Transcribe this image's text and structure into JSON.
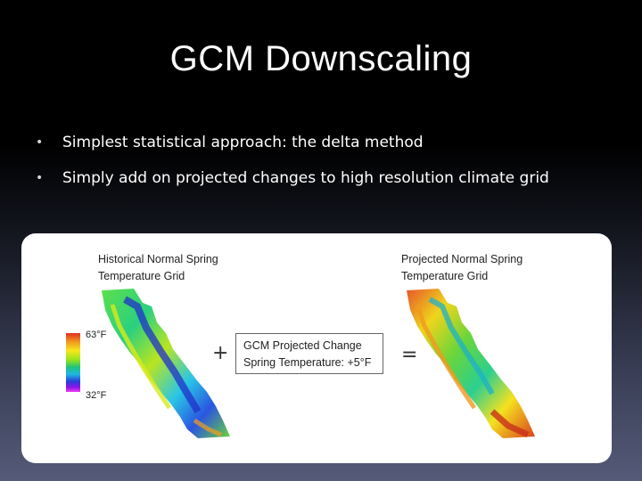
{
  "slide": {
    "title": "GCM Downscaling",
    "bullets": [
      "Simplest statistical approach: the delta method",
      "Simply add on projected changes to high resolution climate grid"
    ]
  },
  "figure": {
    "left_label": [
      "Historical Normal Spring",
      "Temperature Grid"
    ],
    "right_label": [
      "Projected Normal Spring",
      "Temperature Grid"
    ],
    "legend": {
      "max": "63°F",
      "min": "32°F"
    },
    "plus": "+",
    "equals": "=",
    "change_box": [
      "GCM Projected Change",
      "Spring Temperature: +5°F"
    ]
  },
  "colors": {
    "background_top": "#000000",
    "background_bottom": "#555b78",
    "title_text": "#ffffff",
    "panel": "#ffffff"
  }
}
